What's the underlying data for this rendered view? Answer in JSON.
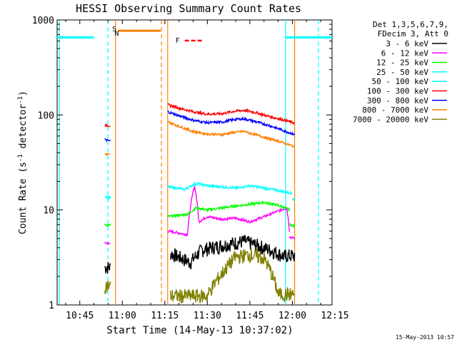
{
  "chart_data": {
    "type": "line",
    "title": "HESSI Observing Summary Count Rates",
    "xlabel": "Start Time (14-May-13 10:37:02)",
    "ylabel_main": "Count Rate (s",
    "ylabel_sup1": "-1",
    "ylabel_mid": " detector",
    "ylabel_sup2": "-1",
    "ylabel_end": ")",
    "yscale": "log",
    "ylim": [
      1,
      1000
    ],
    "xlim_minutes": [
      637.0,
      734.0
    ],
    "x_ticks": [
      {
        "minute": 645,
        "label": "10:45"
      },
      {
        "minute": 660,
        "label": "11:00"
      },
      {
        "minute": 675,
        "label": "11:15"
      },
      {
        "minute": 690,
        "label": "11:30"
      },
      {
        "minute": 705,
        "label": "11:45"
      },
      {
        "minute": 720,
        "label": "12:00"
      },
      {
        "minute": 735,
        "label": "12:15"
      }
    ],
    "y_ticks": [
      {
        "value": 1,
        "label": "1"
      },
      {
        "value": 10,
        "label": "10"
      },
      {
        "value": 100,
        "label": "100"
      },
      {
        "value": 1000,
        "label": "1000"
      }
    ],
    "legend_header": [
      "Det 1,3,5,6,7,9,",
      "FDecim 3, Att 0"
    ],
    "series": [
      {
        "name": "3 - 6 keV",
        "color": "#000000",
        "segments": [
          [
            [
              653.8,
              2.5
            ],
            [
              655.8,
              2.5
            ]
          ],
          [
            [
              677.0,
              3.5
            ],
            [
              684.0,
              2.8
            ],
            [
              688.0,
              3.8
            ],
            [
              696.0,
              4.3
            ],
            [
              703.0,
              4.7
            ],
            [
              708.0,
              4.2
            ],
            [
              715.0,
              3.5
            ],
            [
              717.5,
              3.2
            ]
          ],
          [
            [
              717.5,
              3.3
            ],
            [
              720.8,
              3.3
            ]
          ]
        ]
      },
      {
        "name": "6 - 12 keV",
        "color": "#ff00ff",
        "segments": [
          [
            [
              653.8,
              4.5
            ],
            [
              655.8,
              4.4
            ]
          ],
          [
            [
              676.0,
              6.0
            ],
            [
              683.0,
              5.5
            ],
            [
              685.5,
              18.0
            ],
            [
              687.0,
              7.5
            ],
            [
              690.0,
              8.5
            ],
            [
              695.0,
              8.0
            ],
            [
              700.0,
              8.2
            ],
            [
              705.0,
              7.5
            ],
            [
              710.0,
              8.5
            ],
            [
              714.0,
              9.5
            ],
            [
              718.0,
              10.5
            ],
            [
              719.0,
              6.0
            ]
          ],
          [
            [
              719.0,
              5.2
            ],
            [
              720.8,
              5.0
            ]
          ]
        ]
      },
      {
        "name": "12 - 25 keV",
        "color": "#00ff00",
        "segments": [
          [
            [
              653.8,
              7.0
            ],
            [
              655.8,
              6.9
            ]
          ],
          [
            [
              676.0,
              8.5
            ],
            [
              683.0,
              9.0
            ],
            [
              686.0,
              10.5
            ],
            [
              690.0,
              10.0
            ],
            [
              695.0,
              10.5
            ],
            [
              700.0,
              11.0
            ],
            [
              705.0,
              11.5
            ],
            [
              710.0,
              12.0
            ],
            [
              715.0,
              11.2
            ],
            [
              719.0,
              10.0
            ]
          ],
          [
            [
              719.0,
              7.0
            ],
            [
              720.8,
              6.8
            ]
          ]
        ]
      },
      {
        "name": "25 - 50 keV",
        "color": "#00ffff",
        "segments": [
          [
            [
              653.8,
              14.0
            ],
            [
              655.8,
              13.5
            ]
          ],
          [
            [
              676.0,
              17.5
            ],
            [
              682.0,
              16.5
            ],
            [
              686.0,
              19.0
            ],
            [
              690.0,
              18.0
            ],
            [
              695.0,
              17.5
            ],
            [
              700.0,
              17.0
            ],
            [
              705.0,
              18.0
            ],
            [
              710.0,
              17.0
            ],
            [
              715.0,
              16.0
            ],
            [
              720.0,
              15.0
            ]
          ],
          [
            [
              720.0,
              13.0
            ],
            [
              720.8,
              13.0
            ]
          ],
          [
            [
              637.0,
              655.0
            ],
            [
              650.0,
              655.0
            ]
          ],
          [
            [
              717.5,
              655.0
            ],
            [
              734.0,
              655.0
            ]
          ]
        ]
      },
      {
        "name": "50 - 100 keV",
        "color": "#00ffff",
        "segments": []
      },
      {
        "name": "100 - 300 keV",
        "color": "#ff0000",
        "segments": [
          [
            [
              653.8,
              78.0
            ],
            [
              655.8,
              77.0
            ]
          ],
          [
            [
              676.0,
              128.0
            ],
            [
              680.0,
              118.0
            ],
            [
              685.0,
              108.0
            ],
            [
              690.0,
              102.0
            ],
            [
              695.0,
              103.0
            ],
            [
              700.0,
              110.0
            ],
            [
              703.0,
              112.0
            ],
            [
              707.0,
              106.0
            ],
            [
              712.0,
              96.0
            ],
            [
              716.0,
              90.0
            ],
            [
              720.8,
              82.0
            ]
          ]
        ]
      },
      {
        "name": "300 - 800 keV",
        "color": "#0000ff",
        "segments": [
          [
            [
              653.8,
              55.0
            ],
            [
              655.8,
              53.0
            ]
          ],
          [
            [
              676.0,
              108.0
            ],
            [
              680.0,
              98.0
            ],
            [
              685.0,
              88.0
            ],
            [
              690.0,
              83.0
            ],
            [
              695.0,
              84.0
            ],
            [
              700.0,
              90.0
            ],
            [
              703.0,
              91.0
            ],
            [
              707.0,
              85.0
            ],
            [
              712.0,
              77.0
            ],
            [
              716.0,
              70.0
            ],
            [
              720.8,
              62.0
            ]
          ]
        ]
      },
      {
        "name": "800 - 7000 keV",
        "color": "#ff8000",
        "segments": [
          [
            [
              653.8,
              39.0
            ],
            [
              655.8,
              38.0
            ]
          ],
          [
            [
              676.0,
              85.0
            ],
            [
              680.0,
              76.0
            ],
            [
              685.0,
              67.0
            ],
            [
              690.0,
              63.0
            ],
            [
              695.0,
              62.0
            ],
            [
              700.0,
              66.0
            ],
            [
              703.0,
              67.0
            ],
            [
              707.0,
              62.0
            ],
            [
              712.0,
              56.0
            ],
            [
              716.0,
              52.0
            ],
            [
              720.8,
              46.0
            ]
          ],
          [
            [
              658.5,
              770.0
            ],
            [
              673.5,
              770.0
            ]
          ]
        ]
      },
      {
        "name": "7000 - 20000 keV",
        "color": "#808000",
        "segments": [
          [
            [
              653.8,
              1.6
            ],
            [
              655.8,
              1.6
            ]
          ],
          [
            [
              677.0,
              1.25
            ],
            [
              690.0,
              1.25
            ],
            [
              695.0,
              2.1
            ],
            [
              700.0,
              3.2
            ],
            [
              705.0,
              3.4
            ],
            [
              710.0,
              3.1
            ],
            [
              715.0,
              1.3
            ],
            [
              720.8,
              1.3
            ]
          ]
        ]
      }
    ],
    "extra_legend_color": "#808000",
    "markers": [
      {
        "label": "S",
        "minute": 657.2,
        "color": "#ff8000"
      },
      {
        "label": "N",
        "minute": 658.0,
        "color": "#00ffff"
      },
      {
        "label": "F",
        "minute": 679.5,
        "color": "#ff0000"
      }
    ],
    "vertical_lines": [
      {
        "minute": 637.8,
        "color": "#00ffff",
        "dash": false
      },
      {
        "minute": 654.9,
        "color": "#00ffff",
        "dash": true
      },
      {
        "minute": 657.6,
        "color": "#ff8000",
        "dash": false
      },
      {
        "minute": 673.8,
        "color": "#ff8000",
        "dash": true
      },
      {
        "minute": 676.0,
        "color": "#ff8000",
        "dash": false
      },
      {
        "minute": 717.6,
        "color": "#00ffff",
        "dash": false
      },
      {
        "minute": 720.8,
        "color": "#ff8000",
        "dash": false
      },
      {
        "minute": 729.2,
        "color": "#00ffff",
        "dash": true
      }
    ]
  },
  "footer_date": "15-May-2013 10:57"
}
